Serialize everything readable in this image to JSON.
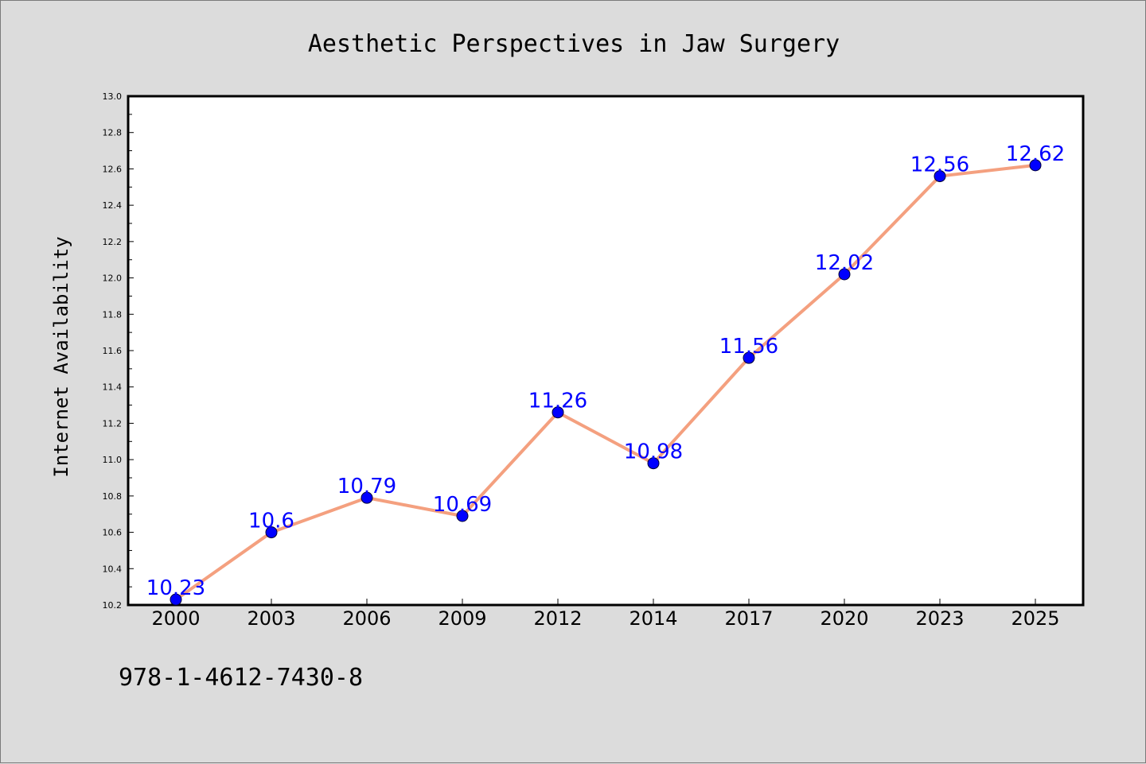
{
  "chart_data": {
    "type": "line",
    "title": "Aesthetic Perspectives in Jaw Surgery",
    "xlabel": "",
    "ylabel": "Internet Availability",
    "categories": [
      "2000",
      "2003",
      "2006",
      "2009",
      "2012",
      "2014",
      "2017",
      "2020",
      "2023",
      "2025"
    ],
    "values": [
      10.23,
      10.6,
      10.79,
      10.69,
      11.26,
      10.98,
      11.56,
      12.02,
      12.56,
      12.62
    ],
    "data_labels": [
      "10.23",
      "10.6",
      "10.79",
      "10.69",
      "11.26",
      "10.98",
      "11.56",
      "12.02",
      "12.56",
      "12.62"
    ],
    "ylim": [
      10.2,
      13.0
    ],
    "yticks": [
      "10.2",
      "10.4",
      "10.6",
      "10.8",
      "11.0",
      "11.2",
      "11.4",
      "11.6",
      "11.8",
      "12.0",
      "12.2",
      "12.4",
      "12.6",
      "12.8",
      "13.0"
    ],
    "grid": false,
    "legend": "none",
    "line_color": "#f4a07f",
    "marker_color": "#0000ff",
    "label_color": "#0000ff"
  },
  "footer": {
    "isbn": "978-1-4612-7430-8"
  }
}
